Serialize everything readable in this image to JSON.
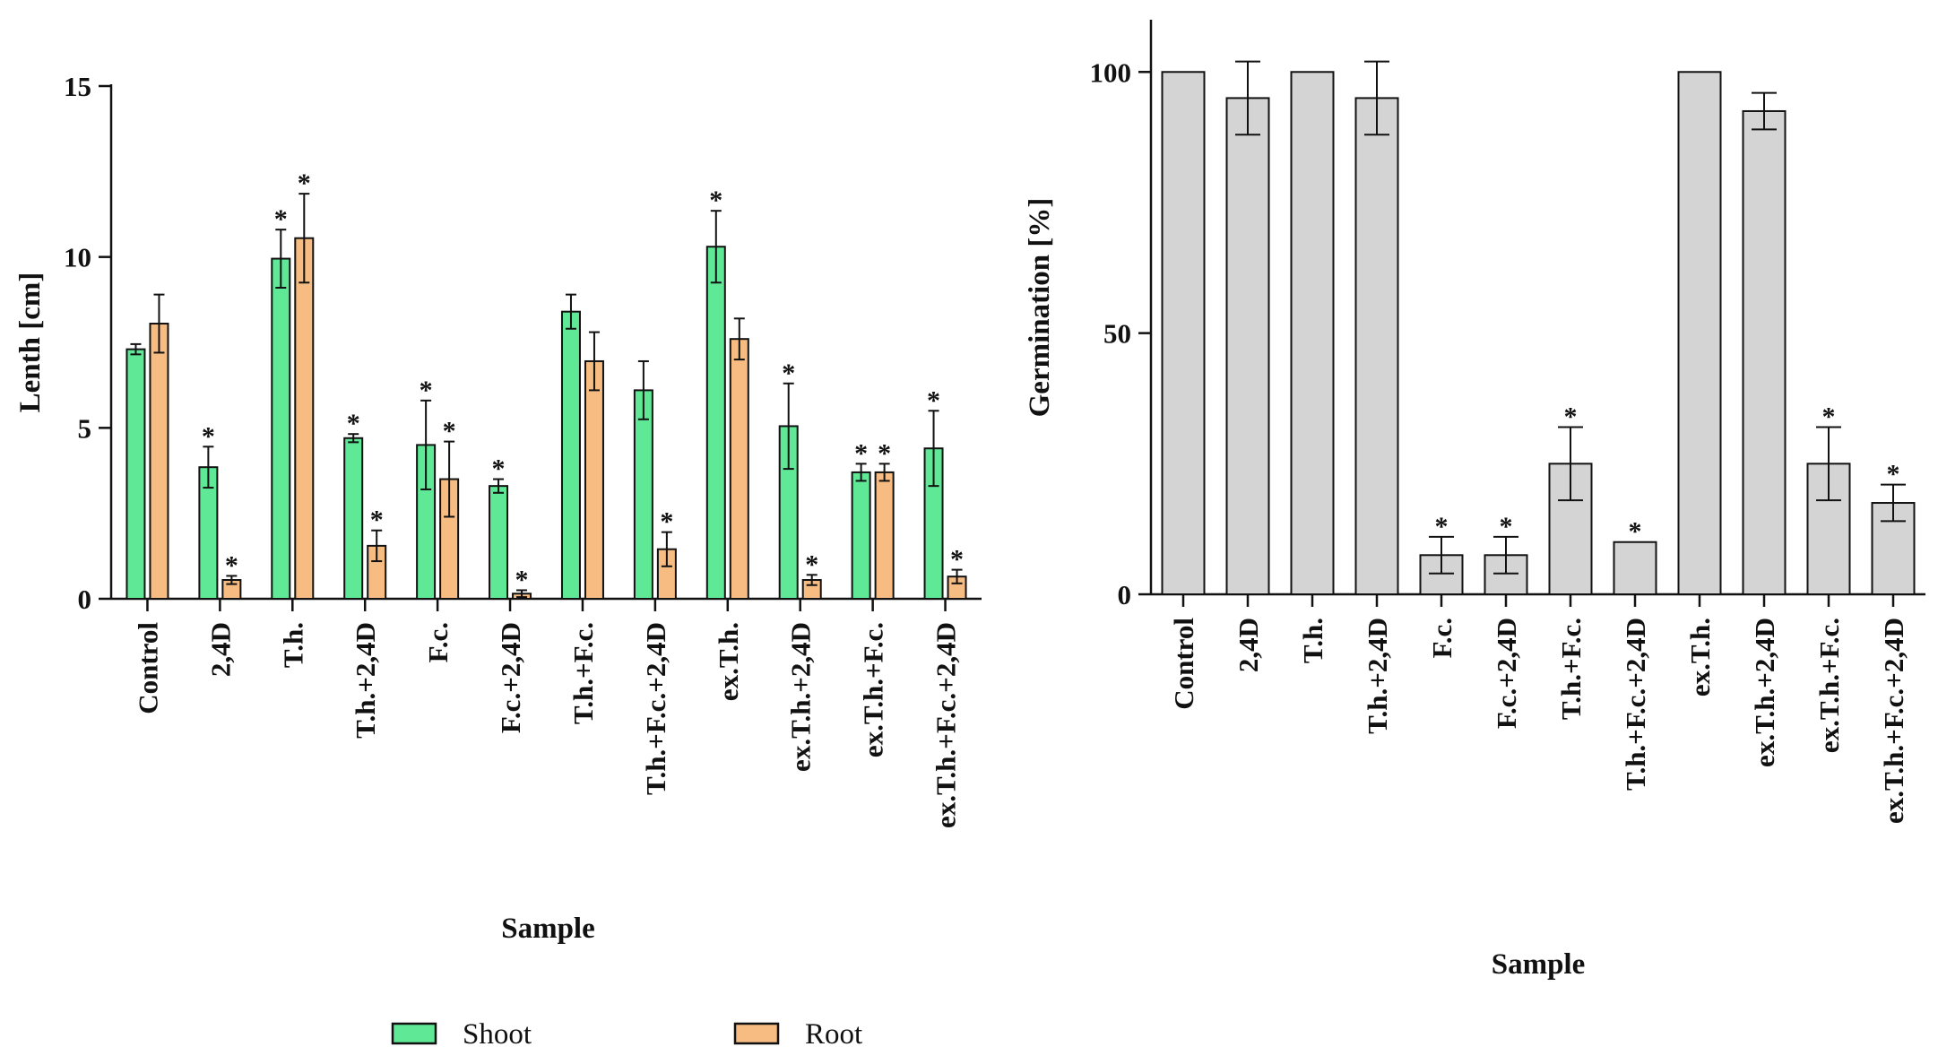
{
  "chart_data": [
    {
      "type": "bar",
      "title": "",
      "xlabel": "Sample",
      "ylabel": "Lenth [cm]",
      "ylim": [
        0,
        15
      ],
      "yticks": [
        "0",
        "5",
        "10",
        "15"
      ],
      "categories": [
        "Control",
        "2,4D",
        "T.h.",
        "T.h.+2,4D",
        "F.c.",
        "F.c.+2,4D",
        "T.h.+F.c.",
        "T.h.+F.c.+2,4D",
        "ex.T.h.",
        "ex.T.h.+2,4D",
        "ex.T.h.+F.c.",
        "ex.T.h.+F.c.+2,4D"
      ],
      "series": [
        {
          "name": "Shoot",
          "color": "#5fe896",
          "values": [
            7.3,
            3.85,
            9.95,
            4.7,
            4.5,
            3.3,
            8.4,
            6.1,
            10.3,
            5.05,
            3.7,
            4.4
          ],
          "errors": [
            0.15,
            0.6,
            0.85,
            0.12,
            1.3,
            0.2,
            0.5,
            0.85,
            1.05,
            1.25,
            0.25,
            1.1
          ],
          "significant": [
            false,
            true,
            true,
            true,
            true,
            true,
            false,
            false,
            true,
            true,
            true,
            true
          ]
        },
        {
          "name": "Root",
          "color": "#f6bc82",
          "values": [
            8.05,
            0.55,
            10.55,
            1.55,
            3.5,
            0.15,
            6.95,
            1.45,
            7.6,
            0.55,
            3.7,
            0.65
          ],
          "errors": [
            0.85,
            0.12,
            1.3,
            0.45,
            1.1,
            0.1,
            0.85,
            0.5,
            0.6,
            0.15,
            0.25,
            0.2
          ],
          "significant": [
            false,
            true,
            true,
            true,
            true,
            true,
            false,
            true,
            false,
            true,
            true,
            true
          ]
        }
      ],
      "legend": {
        "position": "bottom",
        "items": [
          "Shoot",
          "Root"
        ]
      },
      "significance_marker": "*"
    },
    {
      "type": "bar",
      "title": "",
      "xlabel": "Sample",
      "ylabel": "Germination [%]",
      "ylim": [
        0,
        110
      ],
      "yticks": [
        "0",
        "50",
        "100"
      ],
      "categories": [
        "Control",
        "2,4D",
        "T.h.",
        "T.h.+2,4D",
        "F.c.",
        "F.c.+2,4D",
        "T.h.+F.c.",
        "T.h.+F.c.+2,4D",
        "ex.T.h.",
        "ex.T.h.+2,4D",
        "ex.T.h.+F.c.",
        "ex.T.h.+F.c.+2,4D"
      ],
      "series": [
        {
          "name": "Germination",
          "color": "#d4d4d4",
          "values": [
            100,
            95,
            100,
            95,
            7.5,
            7.5,
            25,
            10,
            100,
            92.5,
            25,
            17.5
          ],
          "errors": [
            0,
            7,
            0,
            7,
            3.5,
            3.5,
            7,
            0,
            0,
            3.5,
            7,
            3.5
          ],
          "significant": [
            false,
            false,
            false,
            false,
            true,
            true,
            true,
            true,
            false,
            false,
            true,
            true
          ]
        }
      ],
      "significance_marker": "*"
    }
  ]
}
